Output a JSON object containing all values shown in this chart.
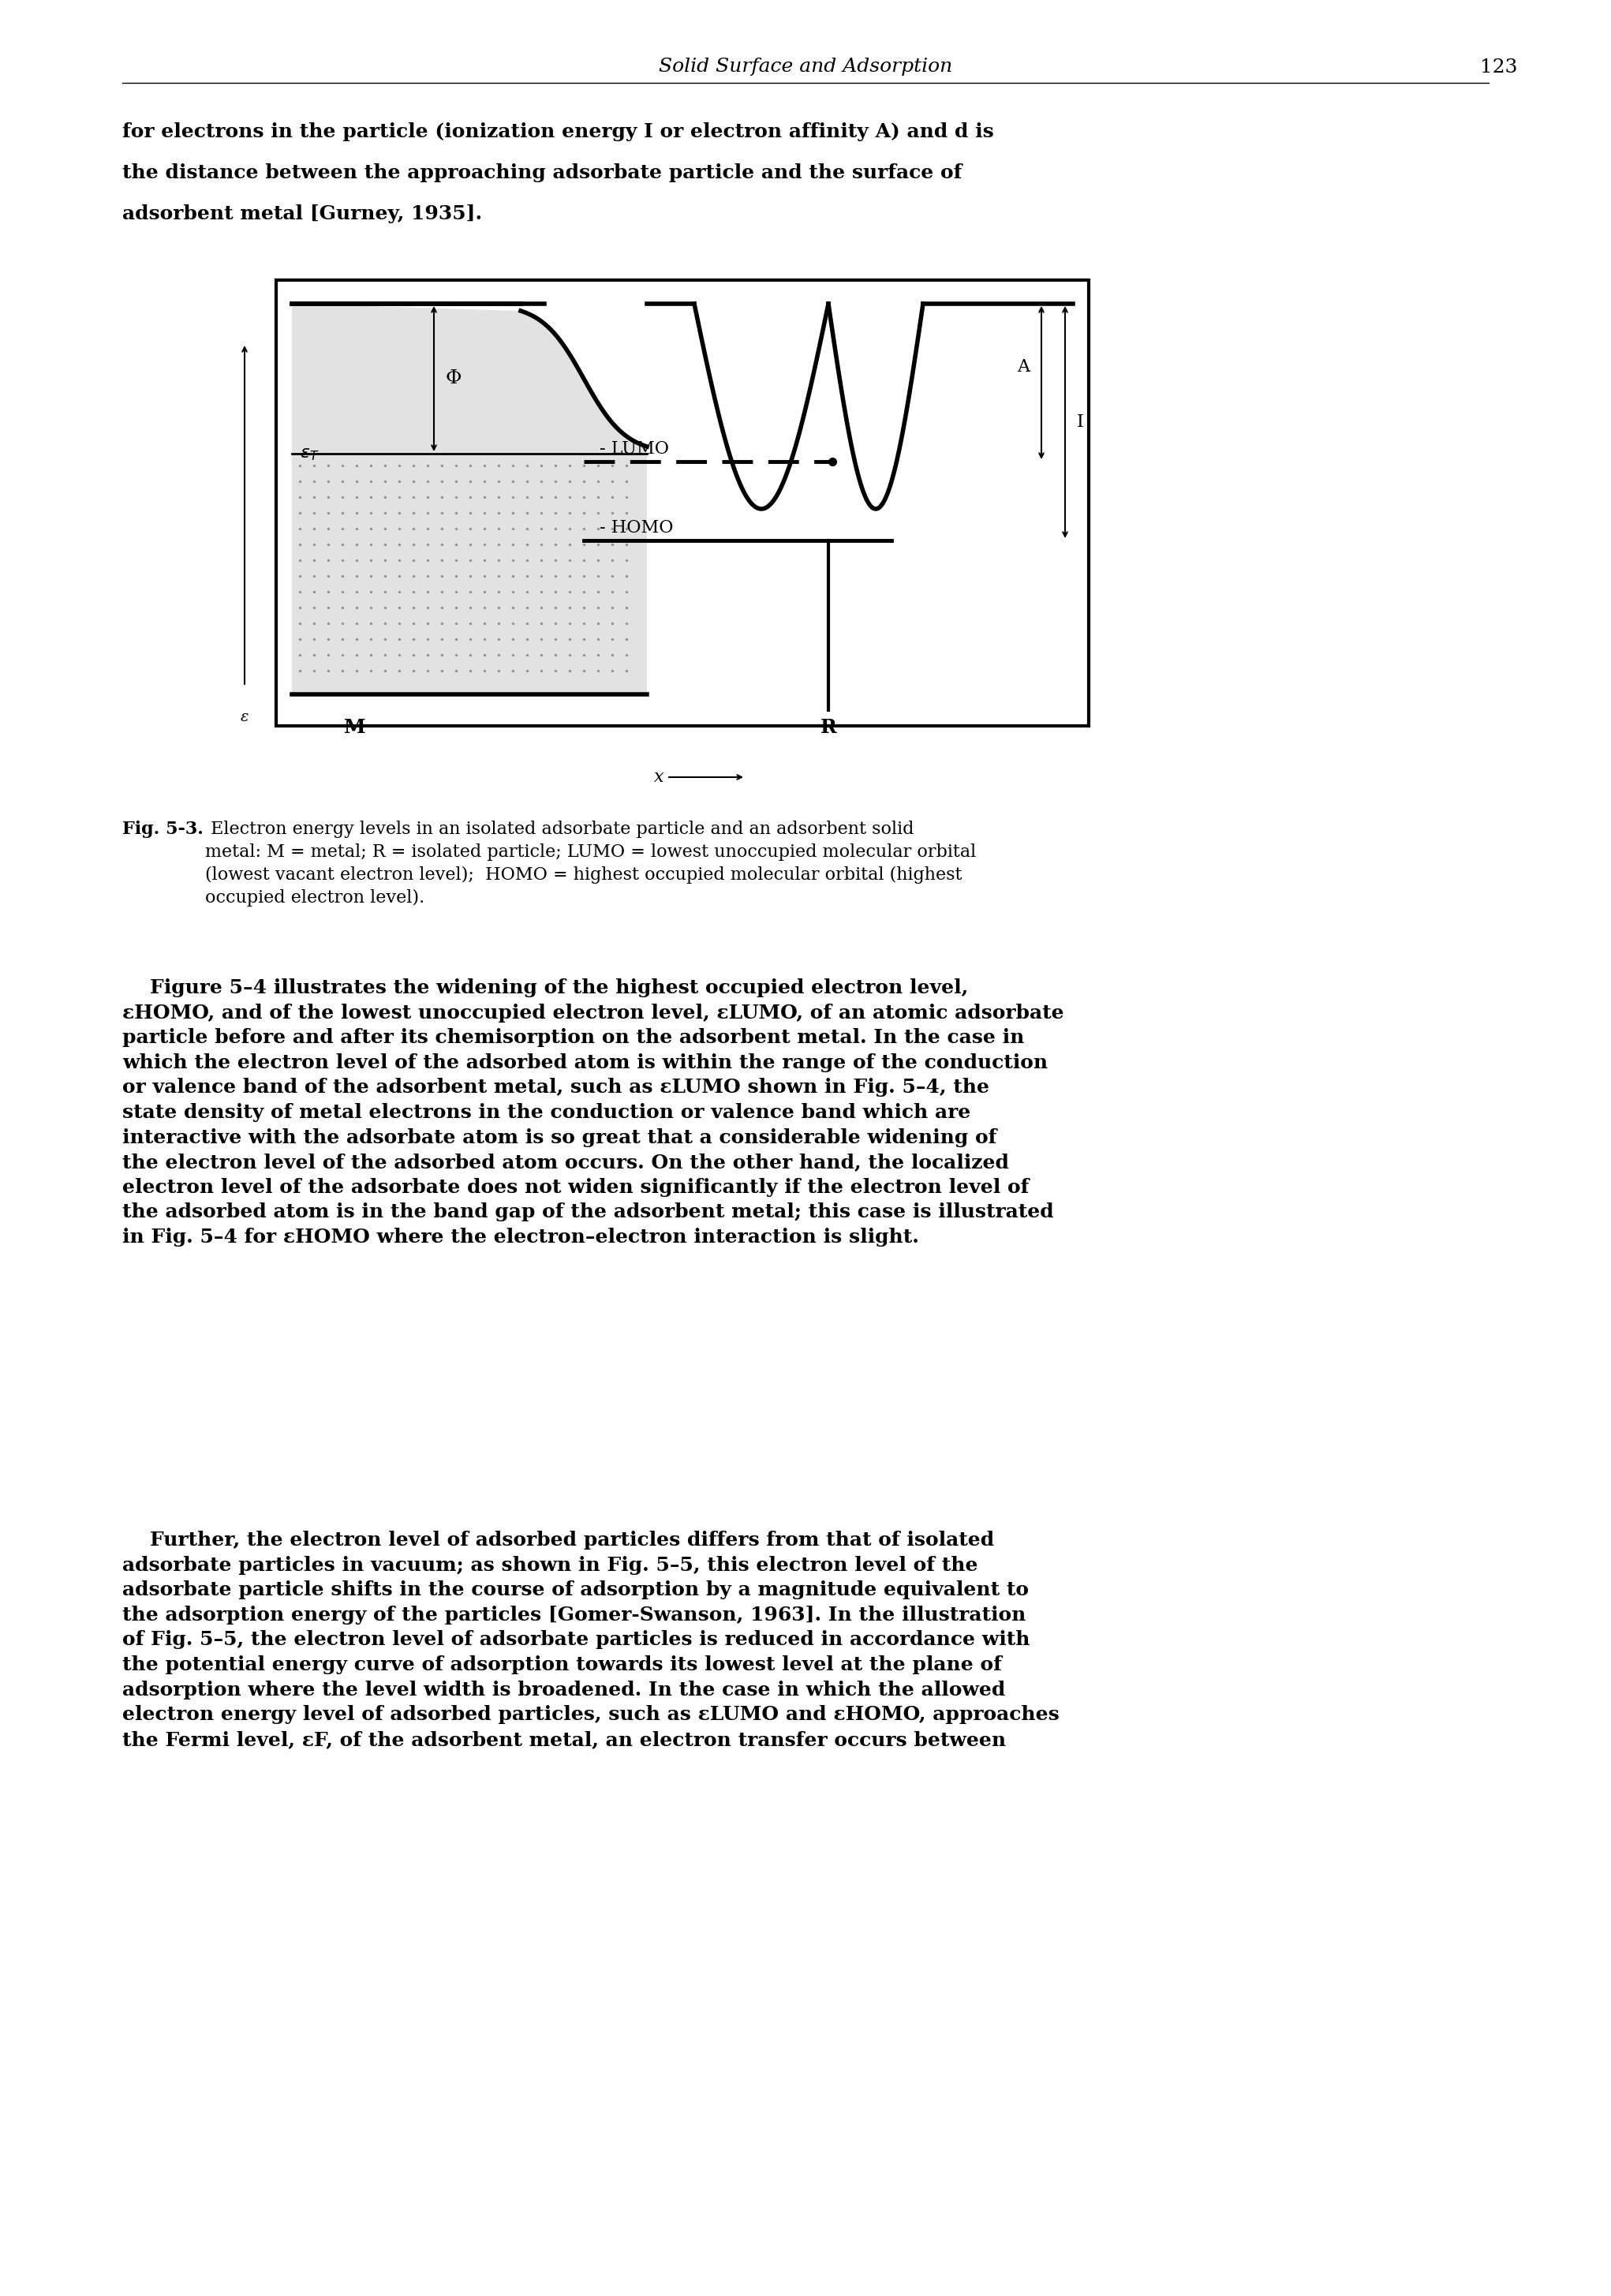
{
  "page_title": "Solid Surface and Adsorption",
  "page_number": "123",
  "intro_text_lines": [
    "for electrons in the particle (ionization energy I or electron affinity A) and d is",
    "the distance between the approaching adsorbate particle and the surface of",
    "adsorbent metal [Gurney, 1935]."
  ],
  "caption_bold": "Fig. 5-3.",
  "caption_text": " Electron energy levels in an isolated adsorbate particle and an adsorbent solid\nmetal: M = metal; R = isolated particle; LUMO = lowest unoccupied molecular orbital\n(lowest vacant electron level);  HOMO = highest occupied molecular orbital (highest\noccupied electron level).",
  "body_paragraphs": [
    "    Figure 5–4 illustrates the widening of the highest occupied electron level,\nεHOMO, and of the lowest unoccupied electron level, εLUMO, of an atomic adsorbate\nparticle before and after its chemisorption on the adsorbent metal. In the case in\nwhich the electron level of the adsorbed atom is within the range of the conduction\nor valence band of the adsorbent metal, such as εLUMO shown in Fig. 5–4, the\nstate density of metal electrons in the conduction or valence band which are\ninteractive with the adsorbate atom is so great that a considerable widening of\nthe electron level of the adsorbed atom occurs. On the other hand, the localized\nelectron level of the adsorbate does not widen significantly if the electron level of\nthe adsorbed atom is in the band gap of the adsorbent metal; this case is illustrated\nin Fig. 5–4 for εHOMO where the electron–electron interaction is slight.",
    "    Further, the electron level of adsorbed particles differs from that of isolated\nadsorbate particles in vacuum; as shown in Fig. 5–5, this electron level of the\nadsorbate particle shifts in the course of adsorption by a magnitude equivalent to\nthe adsorption energy of the particles [Gomer-Swanson, 1963]. In the illustration\nof Fig. 5–5, the electron level of adsorbate particles is reduced in accordance with\nthe potential energy curve of adsorption towards its lowest level at the plane of\nadsorption where the level width is broadened. In the case in which the allowed\nelectron energy level of adsorbed particles, such as εLUMO and εHOMO, approaches\nthe Fermi level, εF, of the adsorbent metal, an electron transfer occurs between"
  ],
  "background_color": "#ffffff",
  "text_color": "#000000",
  "fig_box_color": "#000000",
  "hatching_color": "#cccccc"
}
